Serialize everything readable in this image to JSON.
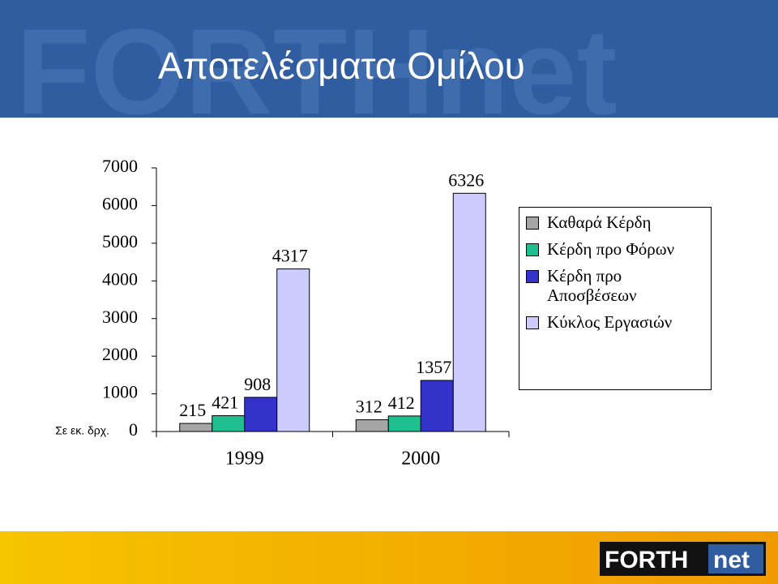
{
  "chart_data": {
    "type": "bar",
    "title": "Αποτελέσματα Ομίλου",
    "y_label": "Σε εκ. δρχ.",
    "categories": [
      "1999",
      "2000"
    ],
    "series": [
      {
        "name": "Καθαρά Κέρδη",
        "color": "#a6a6a6",
        "values": [
          215,
          312
        ]
      },
      {
        "name": "Κέρδη προ Φόρων",
        "color": "#1fbf8f",
        "values": [
          421,
          412
        ]
      },
      {
        "name": "Κέρδη προ Αποσβέσεων",
        "color": "#3333cc",
        "values": [
          908,
          1357
        ]
      },
      {
        "name": "Κύκλος Εργασιών",
        "color": "#ccccff",
        "values": [
          4317,
          6326
        ]
      }
    ],
    "ylim": [
      0,
      7000
    ],
    "yticks": [
      0,
      1000,
      2000,
      3000,
      4000,
      5000,
      6000,
      7000
    ],
    "grid": false,
    "legend": "right"
  },
  "header": {
    "watermark": "FORTHnet"
  },
  "logo": {
    "left": "FORTH",
    "right": "net"
  }
}
